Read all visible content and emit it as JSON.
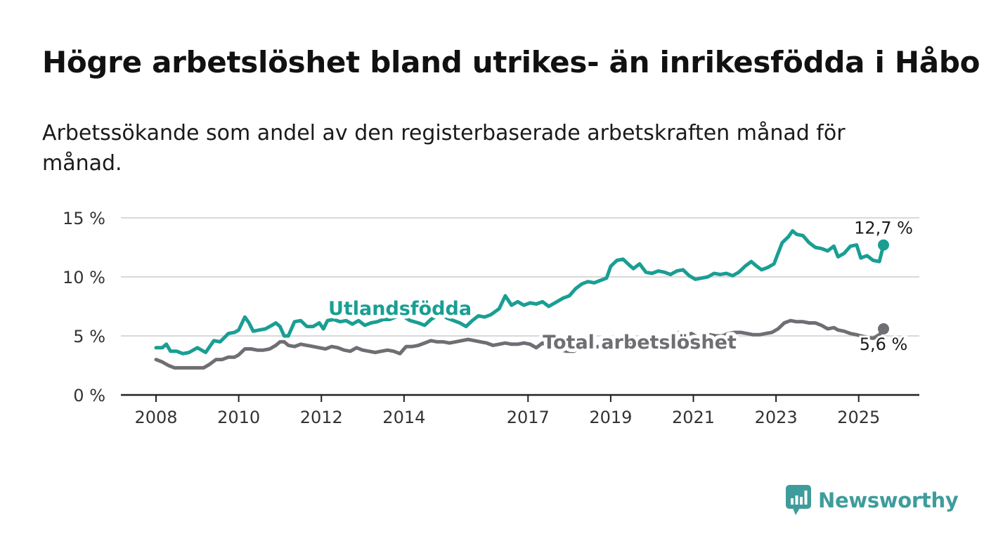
{
  "title": "Högre arbetslöshet bland utrikes- än inrikesfödda i Håbo",
  "subtitle": "Arbetssökande som andel av den registerbaserade arbetskraften månad för månad.",
  "brand": "Newsworthy",
  "colors": {
    "utlandsfodda": "#1a9e93",
    "total": "#6e6e73",
    "grid": "#d9d9d9",
    "axis": "#222222",
    "brand": "#3f9c9c"
  },
  "chart_data": {
    "type": "line",
    "ylim": [
      0,
      15
    ],
    "xlim": [
      2008,
      2025.6
    ],
    "y_ticks": [
      0,
      5,
      10,
      15
    ],
    "y_tick_labels": [
      "0 %",
      "5 %",
      "10 %",
      "15 %"
    ],
    "x_ticks": [
      2008,
      2010,
      2012,
      2014,
      2017,
      2019,
      2021,
      2023,
      2025
    ],
    "x_tick_labels": [
      "2008",
      "2010",
      "2012",
      "2014",
      "2017",
      "2019",
      "2021",
      "2023",
      "2025"
    ],
    "grid": true,
    "series": [
      {
        "name": "Utlandsfödda",
        "end_label": "12,7 %",
        "points": [
          [
            2008.0,
            4.0
          ],
          [
            2008.15,
            4.0
          ],
          [
            2008.25,
            4.3
          ],
          [
            2008.35,
            3.7
          ],
          [
            2008.5,
            3.7
          ],
          [
            2008.65,
            3.5
          ],
          [
            2008.8,
            3.6
          ],
          [
            2009.0,
            4.0
          ],
          [
            2009.2,
            3.6
          ],
          [
            2009.4,
            4.6
          ],
          [
            2009.55,
            4.5
          ],
          [
            2009.75,
            5.2
          ],
          [
            2009.9,
            5.3
          ],
          [
            2010.0,
            5.5
          ],
          [
            2010.15,
            6.6
          ],
          [
            2010.25,
            6.1
          ],
          [
            2010.35,
            5.4
          ],
          [
            2010.5,
            5.5
          ],
          [
            2010.65,
            5.6
          ],
          [
            2010.8,
            5.9
          ],
          [
            2010.9,
            6.1
          ],
          [
            2011.0,
            5.8
          ],
          [
            2011.1,
            5.0
          ],
          [
            2011.2,
            5.0
          ],
          [
            2011.35,
            6.2
          ],
          [
            2011.5,
            6.3
          ],
          [
            2011.65,
            5.8
          ],
          [
            2011.8,
            5.8
          ],
          [
            2011.95,
            6.1
          ],
          [
            2012.05,
            5.6
          ],
          [
            2012.15,
            6.3
          ],
          [
            2012.3,
            6.4
          ],
          [
            2012.45,
            6.2
          ],
          [
            2012.6,
            6.3
          ],
          [
            2012.75,
            6.0
          ],
          [
            2012.9,
            6.3
          ],
          [
            2013.05,
            5.9
          ],
          [
            2013.2,
            6.1
          ],
          [
            2013.35,
            6.2
          ],
          [
            2013.5,
            6.4
          ],
          [
            2013.65,
            6.4
          ],
          [
            2013.8,
            6.6
          ],
          [
            2013.95,
            6.8
          ],
          [
            2014.05,
            6.5
          ],
          [
            2014.15,
            6.3
          ],
          [
            2014.35,
            6.1
          ],
          [
            2014.5,
            5.9
          ],
          [
            2014.65,
            6.4
          ],
          [
            2014.8,
            6.7
          ],
          [
            2014.95,
            6.7
          ],
          [
            2015.05,
            6.5
          ],
          [
            2015.2,
            6.3
          ],
          [
            2015.35,
            6.1
          ],
          [
            2015.5,
            5.8
          ],
          [
            2015.65,
            6.3
          ],
          [
            2015.8,
            6.7
          ],
          [
            2015.95,
            6.6
          ],
          [
            2016.1,
            6.8
          ],
          [
            2016.3,
            7.3
          ],
          [
            2016.45,
            8.4
          ],
          [
            2016.6,
            7.6
          ],
          [
            2016.75,
            7.9
          ],
          [
            2016.9,
            7.6
          ],
          [
            2017.05,
            7.8
          ],
          [
            2017.2,
            7.7
          ],
          [
            2017.35,
            7.9
          ],
          [
            2017.5,
            7.5
          ],
          [
            2017.7,
            7.9
          ],
          [
            2017.85,
            8.2
          ],
          [
            2018.0,
            8.4
          ],
          [
            2018.15,
            9.0
          ],
          [
            2018.3,
            9.4
          ],
          [
            2018.45,
            9.6
          ],
          [
            2018.6,
            9.5
          ],
          [
            2018.75,
            9.7
          ],
          [
            2018.9,
            9.9
          ],
          [
            2019.0,
            10.9
          ],
          [
            2019.15,
            11.4
          ],
          [
            2019.3,
            11.5
          ],
          [
            2019.45,
            11.0
          ],
          [
            2019.55,
            10.7
          ],
          [
            2019.7,
            11.1
          ],
          [
            2019.85,
            10.4
          ],
          [
            2020.0,
            10.3
          ],
          [
            2020.15,
            10.5
          ],
          [
            2020.3,
            10.4
          ],
          [
            2020.45,
            10.2
          ],
          [
            2020.6,
            10.5
          ],
          [
            2020.75,
            10.6
          ],
          [
            2020.9,
            10.1
          ],
          [
            2021.05,
            9.8
          ],
          [
            2021.2,
            9.9
          ],
          [
            2021.35,
            10.0
          ],
          [
            2021.5,
            10.3
          ],
          [
            2021.65,
            10.2
          ],
          [
            2021.8,
            10.3
          ],
          [
            2021.95,
            10.1
          ],
          [
            2022.1,
            10.4
          ],
          [
            2022.25,
            10.9
          ],
          [
            2022.4,
            11.3
          ],
          [
            2022.5,
            11.0
          ],
          [
            2022.65,
            10.6
          ],
          [
            2022.8,
            10.8
          ],
          [
            2022.95,
            11.1
          ],
          [
            2023.05,
            12.0
          ],
          [
            2023.15,
            12.9
          ],
          [
            2023.3,
            13.4
          ],
          [
            2023.4,
            13.9
          ],
          [
            2023.5,
            13.6
          ],
          [
            2023.65,
            13.5
          ],
          [
            2023.8,
            12.9
          ],
          [
            2023.95,
            12.5
          ],
          [
            2024.1,
            12.4
          ],
          [
            2024.25,
            12.2
          ],
          [
            2024.4,
            12.6
          ],
          [
            2024.5,
            11.7
          ],
          [
            2024.65,
            12.0
          ],
          [
            2024.8,
            12.6
          ],
          [
            2024.95,
            12.7
          ],
          [
            2025.05,
            11.6
          ],
          [
            2025.2,
            11.8
          ],
          [
            2025.35,
            11.4
          ],
          [
            2025.5,
            11.3
          ],
          [
            2025.6,
            12.7
          ]
        ]
      },
      {
        "name": "Total arbetslöshet",
        "end_label": "5,6 %",
        "points": [
          [
            2008.0,
            3.0
          ],
          [
            2008.15,
            2.8
          ],
          [
            2008.3,
            2.5
          ],
          [
            2008.45,
            2.3
          ],
          [
            2008.6,
            2.3
          ],
          [
            2008.8,
            2.3
          ],
          [
            2009.0,
            2.3
          ],
          [
            2009.15,
            2.3
          ],
          [
            2009.3,
            2.6
          ],
          [
            2009.45,
            3.0
          ],
          [
            2009.6,
            3.0
          ],
          [
            2009.75,
            3.2
          ],
          [
            2009.9,
            3.2
          ],
          [
            2010.0,
            3.4
          ],
          [
            2010.15,
            3.9
          ],
          [
            2010.3,
            3.9
          ],
          [
            2010.45,
            3.8
          ],
          [
            2010.6,
            3.8
          ],
          [
            2010.75,
            3.9
          ],
          [
            2010.9,
            4.2
          ],
          [
            2011.0,
            4.5
          ],
          [
            2011.1,
            4.5
          ],
          [
            2011.2,
            4.2
          ],
          [
            2011.35,
            4.1
          ],
          [
            2011.5,
            4.3
          ],
          [
            2011.65,
            4.2
          ],
          [
            2011.8,
            4.1
          ],
          [
            2011.95,
            4.0
          ],
          [
            2012.1,
            3.9
          ],
          [
            2012.25,
            4.1
          ],
          [
            2012.4,
            4.0
          ],
          [
            2012.55,
            3.8
          ],
          [
            2012.7,
            3.7
          ],
          [
            2012.85,
            4.0
          ],
          [
            2013.0,
            3.8
          ],
          [
            2013.15,
            3.7
          ],
          [
            2013.3,
            3.6
          ],
          [
            2013.45,
            3.7
          ],
          [
            2013.6,
            3.8
          ],
          [
            2013.75,
            3.7
          ],
          [
            2013.9,
            3.5
          ],
          [
            2014.05,
            4.1
          ],
          [
            2014.2,
            4.1
          ],
          [
            2014.35,
            4.2
          ],
          [
            2014.5,
            4.4
          ],
          [
            2014.65,
            4.6
          ],
          [
            2014.8,
            4.5
          ],
          [
            2014.95,
            4.5
          ],
          [
            2015.1,
            4.4
          ],
          [
            2015.25,
            4.5
          ],
          [
            2015.4,
            4.6
          ],
          [
            2015.55,
            4.7
          ],
          [
            2015.7,
            4.6
          ],
          [
            2015.85,
            4.5
          ],
          [
            2016.0,
            4.4
          ],
          [
            2016.15,
            4.2
          ],
          [
            2016.3,
            4.3
          ],
          [
            2016.45,
            4.4
          ],
          [
            2016.6,
            4.3
          ],
          [
            2016.75,
            4.3
          ],
          [
            2016.9,
            4.4
          ],
          [
            2017.05,
            4.3
          ],
          [
            2017.2,
            4.0
          ],
          [
            2017.35,
            4.4
          ],
          [
            2017.5,
            4.1
          ],
          [
            2017.65,
            3.9
          ],
          [
            2017.8,
            3.8
          ],
          [
            2017.95,
            3.7
          ],
          [
            2018.1,
            3.7
          ],
          [
            2018.25,
            3.9
          ],
          [
            2018.4,
            4.0
          ],
          [
            2018.55,
            4.0
          ],
          [
            2018.7,
            4.1
          ],
          [
            2018.85,
            4.2
          ],
          [
            2019.0,
            4.2
          ],
          [
            2019.15,
            4.1
          ],
          [
            2019.3,
            4.2
          ],
          [
            2019.45,
            4.3
          ],
          [
            2019.6,
            4.3
          ],
          [
            2019.75,
            4.3
          ],
          [
            2019.9,
            4.4
          ],
          [
            2020.05,
            4.5
          ],
          [
            2020.2,
            4.6
          ],
          [
            2020.35,
            4.8
          ],
          [
            2020.5,
            5.0
          ],
          [
            2020.65,
            5.3
          ],
          [
            2020.8,
            5.0
          ],
          [
            2020.95,
            5.2
          ],
          [
            2021.1,
            4.9
          ],
          [
            2021.25,
            5.0
          ],
          [
            2021.4,
            5.1
          ],
          [
            2021.55,
            5.0
          ],
          [
            2021.7,
            5.0
          ],
          [
            2021.85,
            5.2
          ],
          [
            2022.0,
            5.3
          ],
          [
            2022.15,
            5.3
          ],
          [
            2022.3,
            5.2
          ],
          [
            2022.45,
            5.1
          ],
          [
            2022.6,
            5.1
          ],
          [
            2022.75,
            5.2
          ],
          [
            2022.9,
            5.3
          ],
          [
            2023.05,
            5.6
          ],
          [
            2023.2,
            6.1
          ],
          [
            2023.35,
            6.3
          ],
          [
            2023.5,
            6.2
          ],
          [
            2023.65,
            6.2
          ],
          [
            2023.8,
            6.1
          ],
          [
            2023.95,
            6.1
          ],
          [
            2024.1,
            5.9
          ],
          [
            2024.25,
            5.6
          ],
          [
            2024.4,
            5.7
          ],
          [
            2024.5,
            5.5
          ],
          [
            2024.65,
            5.4
          ],
          [
            2024.8,
            5.2
          ],
          [
            2024.95,
            5.1
          ],
          [
            2025.05,
            5.0
          ],
          [
            2025.2,
            4.9
          ],
          [
            2025.35,
            4.8
          ],
          [
            2025.5,
            5.1
          ],
          [
            2025.6,
            5.6
          ]
        ]
      }
    ]
  }
}
